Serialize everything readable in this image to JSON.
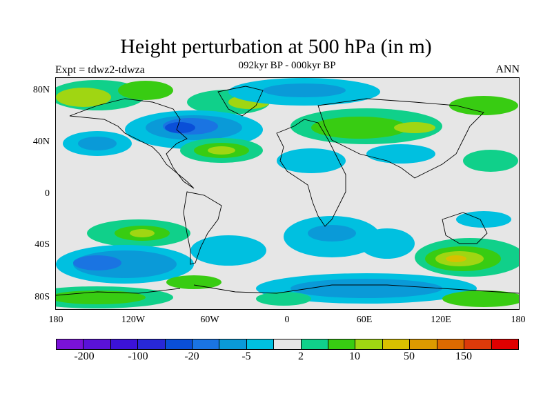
{
  "title": "Height perturbation at 500 hPa (in m)",
  "subtitle": "092kyr BP - 000kyr BP",
  "experiment": "Expt = tdwz2-tdwza",
  "season": "ANN",
  "lat_labels": [
    "80N",
    "40N",
    "0",
    "40S",
    "80S"
  ],
  "lon_labels": [
    "180",
    "120W",
    "60W",
    "0",
    "60E",
    "120E",
    "180"
  ],
  "colorbar": {
    "colors": [
      "#7a12d8",
      "#5a12d8",
      "#3c12d8",
      "#2828d8",
      "#0a4fd8",
      "#1a74e2",
      "#0a9ad8",
      "#00c0e0",
      "#e6e6e6",
      "#10d08a",
      "#38cc12",
      "#a0d612",
      "#d8c000",
      "#dc9a00",
      "#dc6a00",
      "#dc3a0a",
      "#e00000"
    ],
    "labels": [
      "-200",
      "-100",
      "-20",
      "-5",
      "2",
      "10",
      "50",
      "150"
    ]
  }
}
